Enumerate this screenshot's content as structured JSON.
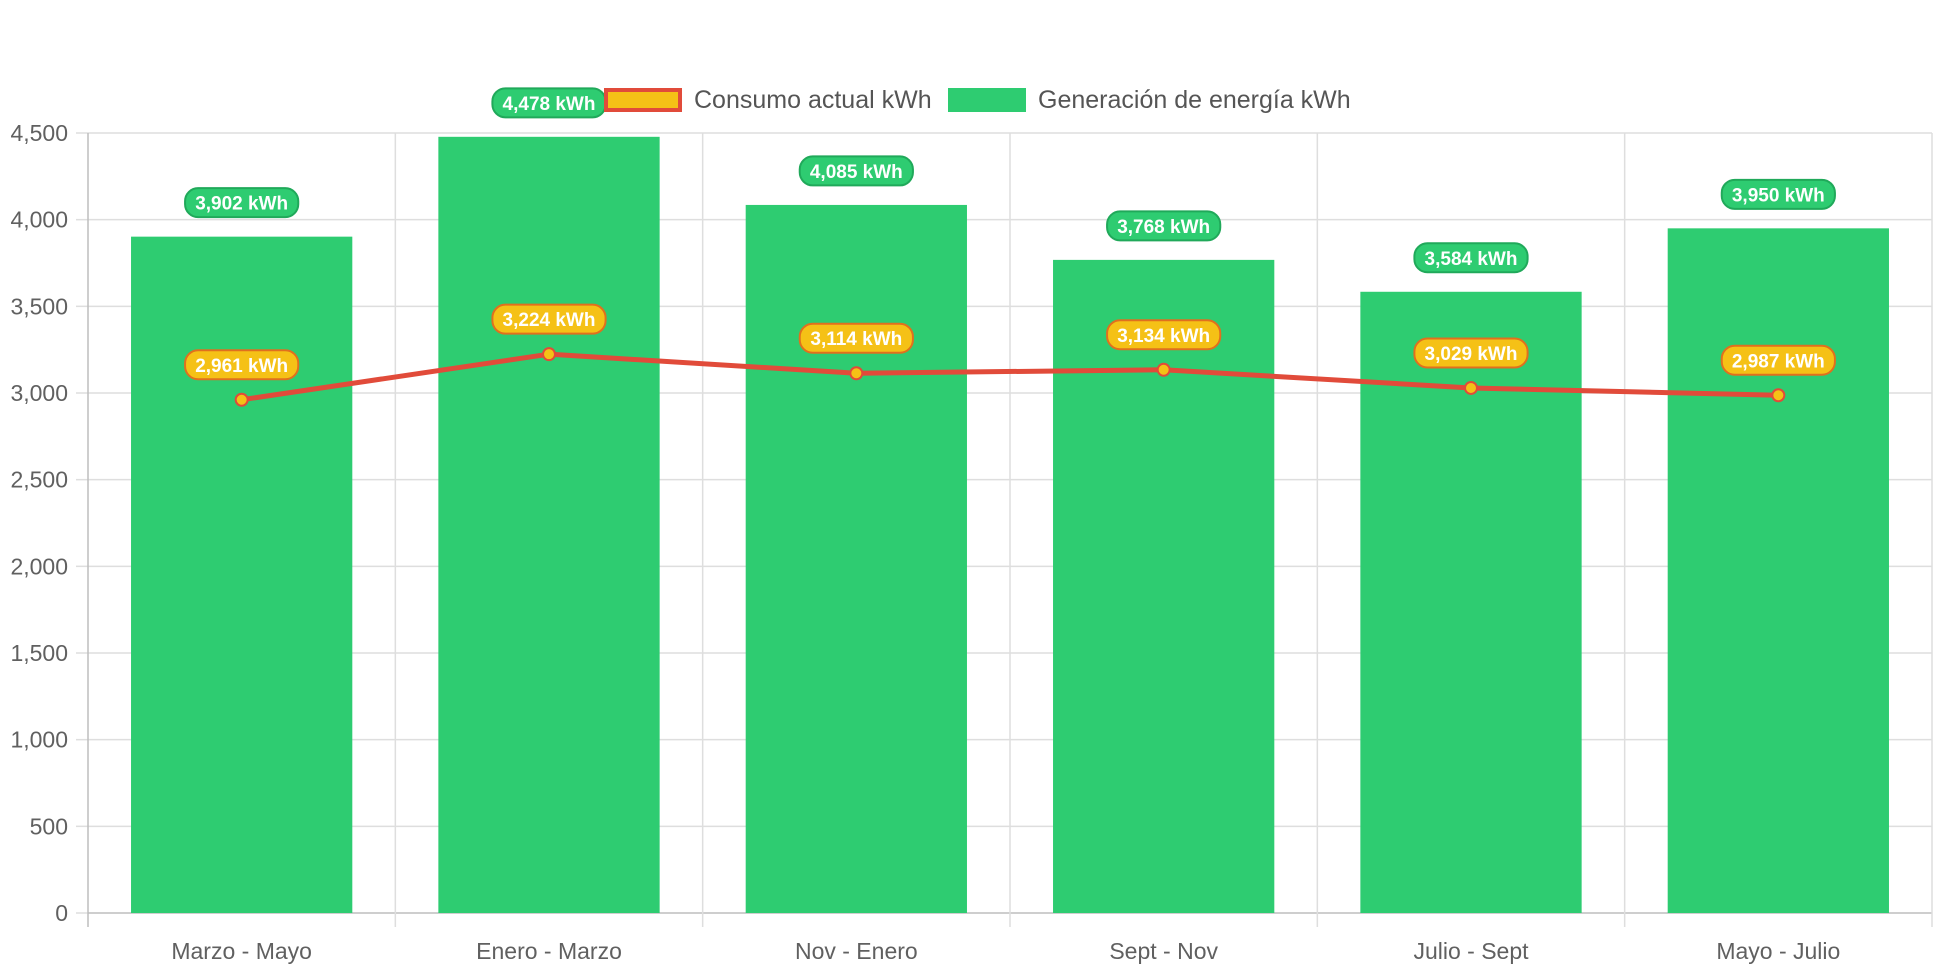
{
  "chart_data": {
    "type": "bar",
    "categories": [
      "Marzo - Mayo",
      "Enero - Marzo",
      "Nov - Enero",
      "Sept - Nov",
      "Julio - Sept",
      "Mayo - Julio"
    ],
    "series": [
      {
        "name": "Generación de energía kWh",
        "type": "bar",
        "color": "#2ecc71",
        "values": [
          3902,
          4478,
          4085,
          3768,
          3584,
          3950
        ],
        "labels": [
          "3,902 kWh",
          "4,478 kWh",
          "4,085 kWh",
          "3,768 kWh",
          "3,584 kWh",
          "3,950 kWh"
        ]
      },
      {
        "name": "Consumo actual kWh",
        "type": "line",
        "color": "#e14b3a",
        "fill": "#f5c116",
        "values": [
          2961,
          3224,
          3114,
          3134,
          3029,
          2987
        ],
        "labels": [
          "2,961 kWh",
          "3,224 kWh",
          "3,114 kWh",
          "3,134 kWh",
          "3,029 kWh",
          "2,987 kWh"
        ]
      }
    ],
    "ylim": [
      0,
      4500
    ],
    "yticks": [
      "0",
      "500",
      "1,000",
      "1,500",
      "2,000",
      "2,500",
      "3,000",
      "3,500",
      "4,000",
      "4,500"
    ],
    "grid": true,
    "legend_position": "top-center"
  },
  "legend": {
    "consumo_label": "Consumo actual kWh",
    "generacion_label": "Generación de energía kWh"
  }
}
